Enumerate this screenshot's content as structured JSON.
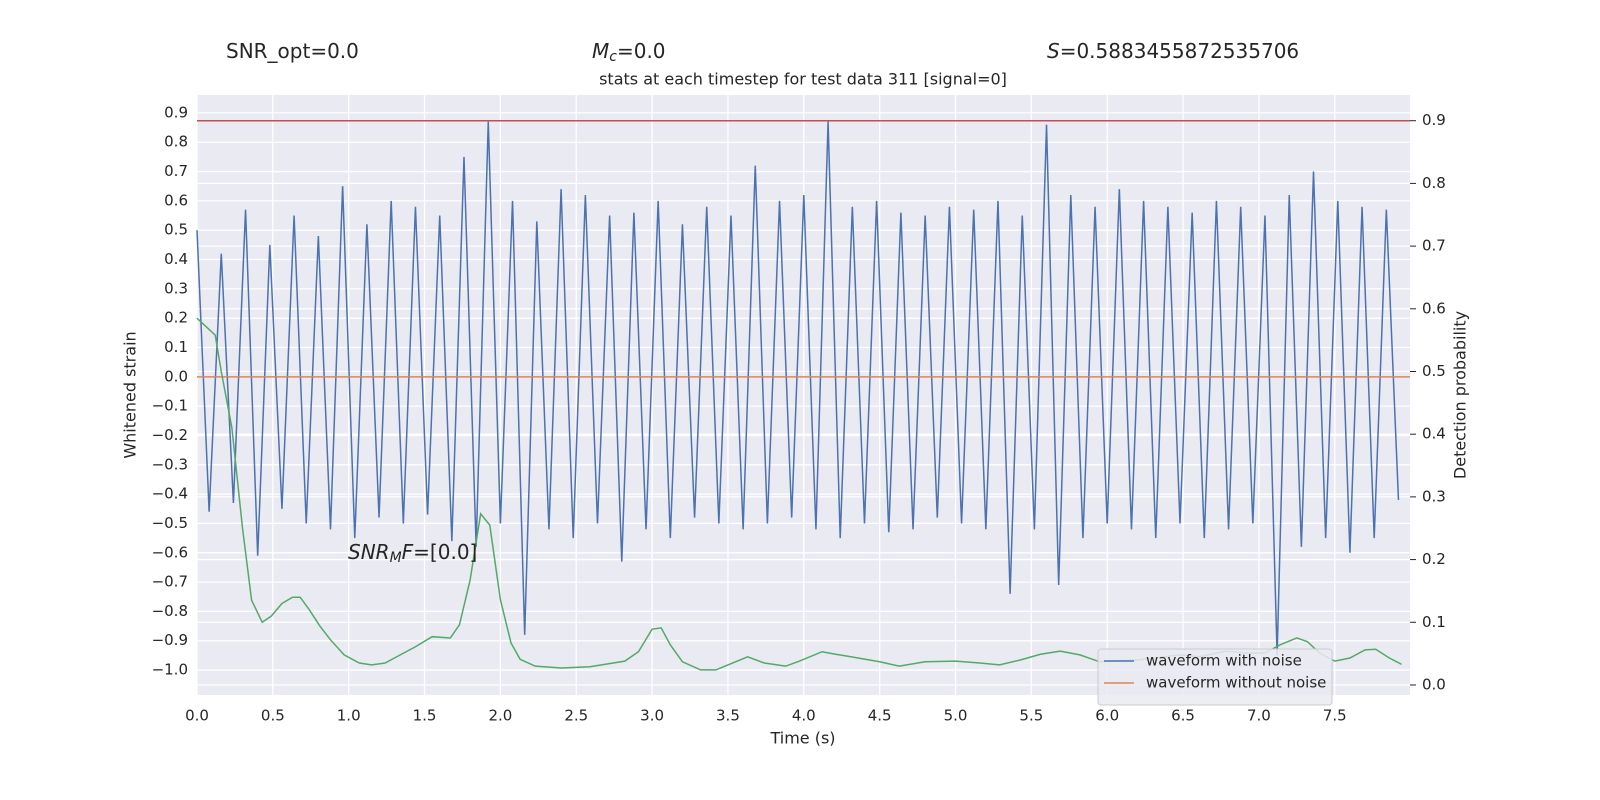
{
  "chart_data": {
    "type": "line",
    "title": "stats at each timestep for test data 311 [signal=0]",
    "annotations": [
      {
        "parts": [
          {
            "text": "SNR_opt=0.0"
          }
        ]
      },
      {
        "parts": [
          {
            "text": "M",
            "style": "italic"
          },
          {
            "text": "c",
            "style": "sub"
          },
          {
            "text": "=0.0"
          }
        ]
      },
      {
        "parts": [
          {
            "text": "S",
            "style": "italic"
          },
          {
            "text": "=0.5883455872535706"
          }
        ]
      },
      {
        "parts": [
          {
            "text": "SNR",
            "style": "italic"
          },
          {
            "text": "M",
            "style": "sub"
          },
          {
            "text": "F",
            "style": "italic"
          },
          {
            "text": "=[0.0]"
          }
        ]
      }
    ],
    "xlabel": "Time (s)",
    "ylabel": "Whitened strain",
    "y2label": "Detection probability",
    "xlim": [
      0,
      7.996
    ],
    "ylim": [
      -1.085,
      0.961
    ],
    "y2lim": [
      -0.016,
      0.941
    ],
    "xticks": [
      {
        "value": 0,
        "label": "0.0"
      },
      0.5,
      {
        "value": 1,
        "label": "1.0"
      },
      1.5,
      {
        "value": 2,
        "label": "2.0"
      },
      2.5,
      {
        "value": 3,
        "label": "3.0"
      },
      3.5,
      {
        "value": 4,
        "label": "4.0"
      },
      4.5,
      {
        "value": 5,
        "label": "5.0"
      },
      5.5,
      {
        "value": 6,
        "label": "6.0"
      },
      6.5,
      {
        "value": 7,
        "label": "7.0"
      },
      7.5
    ],
    "yticks": [
      {
        "value": -1,
        "label": "−1.0"
      },
      {
        "value": -0.9,
        "label": "−0.9"
      },
      {
        "value": -0.8,
        "label": "−0.8"
      },
      {
        "value": -0.7,
        "label": "−0.7"
      },
      {
        "value": -0.6,
        "label": "−0.6"
      },
      {
        "value": -0.5,
        "label": "−0.5"
      },
      {
        "value": -0.4,
        "label": "−0.4"
      },
      {
        "value": -0.3,
        "label": "−0.3"
      },
      {
        "value": -0.2,
        "label": "−0.2"
      },
      {
        "value": -0.1,
        "label": "−0.1"
      },
      {
        "value": 0,
        "label": "0.0"
      },
      0.1,
      0.2,
      0.3,
      0.4,
      0.5,
      0.6,
      0.7,
      0.8,
      0.9
    ],
    "y2ticks": [
      {
        "value": 0,
        "label": "0.0"
      },
      0.1,
      0.2,
      0.3,
      0.4,
      0.5,
      0.6,
      0.7,
      0.8,
      0.9
    ],
    "grid": true,
    "legend": "lower right",
    "hlines": [
      {
        "value": 0.9,
        "axis": "y2",
        "color": "#c44e52"
      }
    ],
    "series": [
      {
        "name": "waveform with noise",
        "color": "#4c72b0",
        "x": [
          0,
          0.08,
          0.16,
          0.24,
          0.32,
          0.4,
          0.48,
          0.56,
          0.64,
          0.72,
          0.8,
          0.88,
          0.96,
          1.04,
          1.12,
          1.2,
          1.28,
          1.36,
          1.44,
          1.52,
          1.6,
          1.68,
          1.76,
          1.84,
          1.92,
          2,
          2.08,
          2.16,
          2.24,
          2.32,
          2.4,
          2.48,
          2.56,
          2.64,
          2.72,
          2.8,
          2.88,
          2.96,
          3.04,
          3.12,
          3.2,
          3.28,
          3.36,
          3.44,
          3.52,
          3.6,
          3.68,
          3.76,
          3.84,
          3.92,
          4,
          4.08,
          4.16,
          4.24,
          4.32,
          4.4,
          4.48,
          4.56,
          4.64,
          4.72,
          4.8,
          4.88,
          4.96,
          5.04,
          5.12,
          5.2,
          5.28,
          5.36,
          5.44,
          5.52,
          5.6,
          5.68,
          5.76,
          5.84,
          5.92,
          6,
          6.08,
          6.16,
          6.24,
          6.32,
          6.4,
          6.48,
          6.56,
          6.64,
          6.72,
          6.8,
          6.88,
          6.96,
          7.04,
          7.12,
          7.2,
          7.28,
          7.36,
          7.44,
          7.52,
          7.6,
          7.68,
          7.76,
          7.84,
          7.92
        ],
        "values": [
          0.5,
          -0.46,
          0.42,
          -0.43,
          0.57,
          -0.61,
          0.45,
          -0.45,
          0.55,
          -0.5,
          0.48,
          -0.52,
          0.65,
          -0.55,
          0.52,
          -0.48,
          0.6,
          -0.5,
          0.58,
          -0.47,
          0.55,
          -0.56,
          0.75,
          -0.58,
          0.87,
          -0.5,
          0.6,
          -0.88,
          0.53,
          -0.52,
          0.64,
          -0.55,
          0.62,
          -0.5,
          0.55,
          -0.63,
          0.56,
          -0.52,
          0.6,
          -0.55,
          0.52,
          -0.48,
          0.58,
          -0.5,
          0.55,
          -0.52,
          0.72,
          -0.5,
          0.6,
          -0.48,
          0.62,
          -0.52,
          0.87,
          -0.55,
          0.58,
          -0.5,
          0.6,
          -0.53,
          0.56,
          -0.52,
          0.55,
          -0.48,
          0.58,
          -0.5,
          0.57,
          -0.52,
          0.6,
          -0.74,
          0.55,
          -0.52,
          0.86,
          -0.71,
          0.62,
          -0.55,
          0.58,
          -0.5,
          0.64,
          -0.52,
          0.6,
          -0.55,
          0.58,
          -0.5,
          0.56,
          -0.55,
          0.6,
          -0.52,
          0.58,
          -0.5,
          0.55,
          -0.95,
          0.62,
          -0.58,
          0.7,
          -0.55,
          0.6,
          -0.6,
          0.58,
          -0.55,
          0.57,
          -0.42
        ]
      },
      {
        "name": "waveform without noise",
        "color": "#dd8452",
        "x": [
          0,
          7.996
        ],
        "values": [
          0,
          0
        ]
      },
      {
        "color": "#55a868",
        "axis": "y2",
        "x": [
          0,
          0.12,
          0.16,
          0.23,
          0.3,
          0.36,
          0.43,
          0.49,
          0.56,
          0.63,
          0.68,
          0.74,
          0.81,
          0.88,
          0.97,
          1.07,
          1.15,
          1.24,
          1.34,
          1.44,
          1.55,
          1.67,
          1.73,
          1.8,
          1.87,
          1.93,
          2,
          2.07,
          2.13,
          2.23,
          2.4,
          2.59,
          2.82,
          2.91,
          3,
          3.06,
          3.12,
          3.2,
          3.32,
          3.42,
          3.55,
          3.63,
          3.74,
          3.88,
          3.97,
          4.12,
          4.21,
          4.31,
          4.5,
          4.63,
          4.8,
          5,
          5.16,
          5.29,
          5.43,
          5.56,
          5.69,
          5.82,
          5.95,
          6.21,
          6.48,
          6.61,
          6.78,
          6.91,
          7.04,
          7.14,
          7.25,
          7.32,
          7.4,
          7.5,
          7.6,
          7.7,
          7.77,
          7.86,
          7.94
        ],
        "values": [
          0.585,
          0.558,
          0.5,
          0.41,
          0.25,
          0.135,
          0.1,
          0.11,
          0.13,
          0.14,
          0.14,
          0.12,
          0.094,
          0.072,
          0.048,
          0.035,
          0.032,
          0.035,
          0.048,
          0.061,
          0.077,
          0.075,
          0.096,
          0.167,
          0.273,
          0.255,
          0.136,
          0.067,
          0.041,
          0.03,
          0.027,
          0.029,
          0.038,
          0.053,
          0.089,
          0.091,
          0.064,
          0.037,
          0.024,
          0.024,
          0.037,
          0.045,
          0.035,
          0.03,
          0.038,
          0.053,
          0.049,
          0.045,
          0.037,
          0.03,
          0.037,
          0.038,
          0.035,
          0.032,
          0.04,
          0.049,
          0.054,
          0.048,
          0.037,
          0.04,
          0.048,
          0.045,
          0.054,
          0.051,
          0.051,
          0.064,
          0.075,
          0.069,
          0.051,
          0.038,
          0.043,
          0.056,
          0.057,
          0.043,
          0.033
        ]
      }
    ]
  }
}
